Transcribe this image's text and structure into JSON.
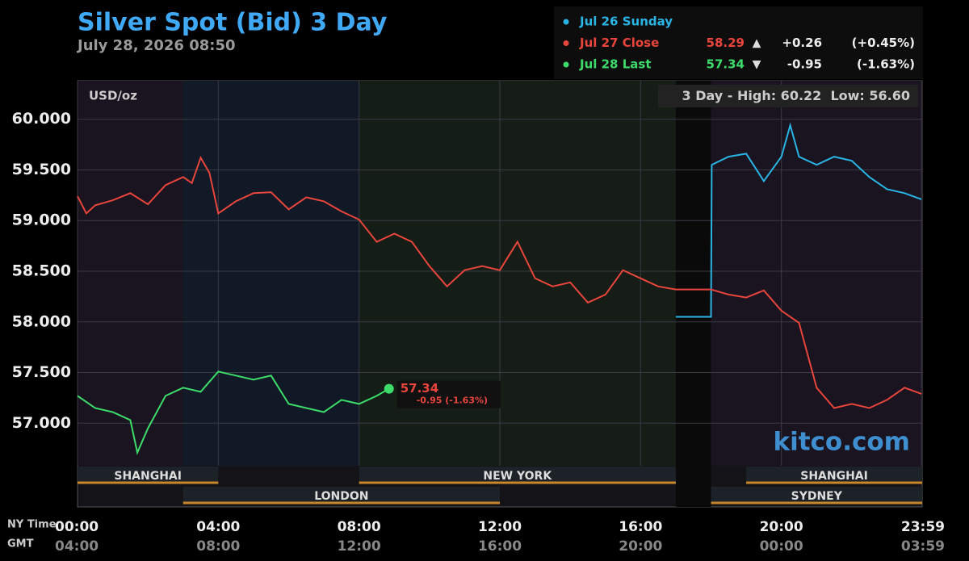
{
  "chart_data": {
    "type": "line",
    "title": "Silver Spot (Bid) 3 Day",
    "subtitle": "July 28, 2026 08:50",
    "unit_label": "USD/oz",
    "high_label": "3 Day - High:",
    "high": 60.22,
    "low_label": "Low:",
    "low": {
      "value": 56.6,
      "label": "56.60"
    },
    "watermark": "kitco.com",
    "x_axis_names": [
      "NY Time",
      "GMT"
    ],
    "xlim": [
      0,
      24
    ],
    "xticks": [
      {
        "value": 0,
        "label": "00:00"
      },
      {
        "value": 4,
        "label": "04:00"
      },
      {
        "value": 8,
        "label": "08:00"
      },
      {
        "value": 12,
        "label": "12:00"
      },
      {
        "value": 16,
        "label": "16:00"
      },
      {
        "value": 20,
        "label": "20:00"
      },
      {
        "value": 23.98,
        "label": "23:59"
      }
    ],
    "gmt_ticks": [
      {
        "value": 0,
        "label": "04:00"
      },
      {
        "value": 4,
        "label": "08:00"
      },
      {
        "value": 8,
        "label": "12:00"
      },
      {
        "value": 12,
        "label": "16:00"
      },
      {
        "value": 16,
        "label": "20:00"
      },
      {
        "value": 20,
        "label": "00:00"
      },
      {
        "value": 23.98,
        "label": "03:59"
      }
    ],
    "ylim": [
      56.58,
      60.38
    ],
    "yticks": [
      {
        "value": 57,
        "label": "57.000"
      },
      {
        "value": 57.5,
        "label": "57.500"
      },
      {
        "value": 58,
        "label": "58.000"
      },
      {
        "value": 58.5,
        "label": "58.500"
      },
      {
        "value": 59,
        "label": "59.000"
      },
      {
        "value": 59.5,
        "label": "59.500"
      },
      {
        "value": 60,
        "label": "60.000"
      }
    ],
    "grid": true,
    "sessions": [
      {
        "name": "SHANGHAI",
        "start": 0,
        "end": 4,
        "row": 0,
        "color": "#1a1420"
      },
      {
        "name": "LONDON",
        "start": 3,
        "end": 12,
        "row": 1,
        "color": "#121a28"
      },
      {
        "name": "NEW YORK",
        "start": 8,
        "end": 17,
        "row": 0,
        "color": "#161e16"
      },
      {
        "name": "SYDNEY",
        "start": 18,
        "end": 24,
        "row": 1,
        "color": "#1a1420"
      },
      {
        "name": "SHANGHAI",
        "start": 19,
        "end": 24,
        "row": 0,
        "color": "#1a1420"
      }
    ],
    "series": [
      {
        "name": "Jul 26 Sunday",
        "color": "#2ab4e4",
        "x": [
          17,
          18,
          18.02,
          18.5,
          19,
          19.5,
          20,
          20.25,
          20.5,
          21,
          21.5,
          22,
          22.5,
          23,
          23.5,
          23.98
        ],
        "values": [
          58.05,
          58.05,
          59.55,
          59.63,
          59.66,
          59.39,
          59.63,
          59.94,
          59.63,
          59.55,
          59.63,
          59.59,
          59.43,
          59.31,
          59.27,
          59.21
        ]
      },
      {
        "name": "Jul 27 Close",
        "color": "#e8453c",
        "last": 58.29,
        "change": {
          "value": 0.26,
          "label": "+0.26"
        },
        "change_pct": {
          "value": 0.45,
          "label": "(+0.45%)"
        },
        "x": [
          0,
          0.25,
          0.5,
          1,
          1.5,
          2,
          2.5,
          3,
          3.25,
          3.5,
          3.75,
          4,
          4.5,
          5,
          5.5,
          6,
          6.5,
          7,
          7.5,
          8,
          8.5,
          9,
          9.5,
          10,
          10.5,
          11,
          11.5,
          12,
          12.5,
          13,
          13.5,
          14,
          14.5,
          15,
          15.5,
          16,
          16.5,
          17,
          17.5,
          18,
          18.5,
          19,
          19.5,
          20,
          20.5,
          21,
          21.5,
          22,
          22.5,
          23,
          23.5,
          23.98
        ],
        "values": [
          59.24,
          59.07,
          59.15,
          59.2,
          59.27,
          59.16,
          59.35,
          59.43,
          59.37,
          59.62,
          59.47,
          59.07,
          59.19,
          59.27,
          59.28,
          59.11,
          59.23,
          59.19,
          59.09,
          59.01,
          58.79,
          58.87,
          58.79,
          58.55,
          58.35,
          58.51,
          58.55,
          58.51,
          58.79,
          58.43,
          58.35,
          58.39,
          58.19,
          58.27,
          58.51,
          58.43,
          58.35,
          58.32,
          58.32,
          58.32,
          58.27,
          58.24,
          58.31,
          58.11,
          57.99,
          57.35,
          57.15,
          57.19,
          57.15,
          57.23,
          57.35,
          57.29
        ]
      },
      {
        "name": "Jul 28 Last",
        "color": "#3ddc6a",
        "last": 57.34,
        "change": {
          "value": -0.95,
          "label": "-0.95"
        },
        "change_pct": {
          "value": -1.63,
          "label": "(-1.63%)"
        },
        "last_change_label": "-0.95 (-1.63%)",
        "x": [
          0,
          0.5,
          1,
          1.5,
          1.7,
          2,
          2.5,
          3,
          3.5,
          4,
          4.5,
          5,
          5.5,
          6,
          6.5,
          7,
          7.5,
          8,
          8.5,
          8.85
        ],
        "values": [
          57.27,
          57.15,
          57.11,
          57.03,
          56.71,
          56.95,
          57.27,
          57.35,
          57.31,
          57.51,
          57.47,
          57.43,
          57.47,
          57.19,
          57.15,
          57.11,
          57.23,
          57.19,
          57.27,
          57.34
        ]
      }
    ]
  }
}
